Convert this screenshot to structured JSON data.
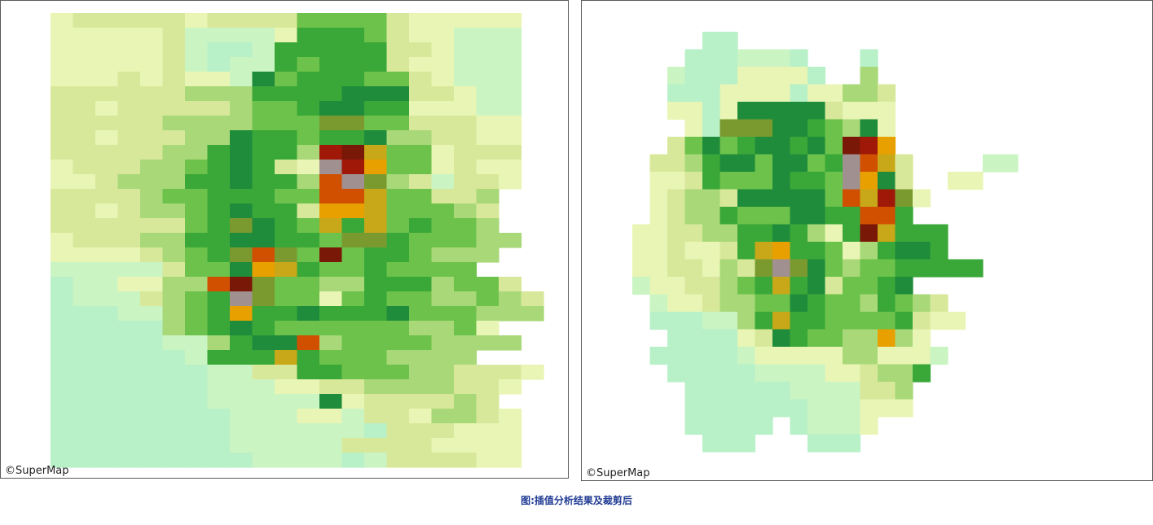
{
  "maps": {
    "left": {
      "credit": "©SuperMap"
    },
    "right": {
      "credit": "©SuperMap"
    }
  },
  "caption": "图:插值分析结果及裁剪后",
  "palette": [
    "#b0f0e8",
    "#b8f0c8",
    "#cbf4c3",
    "#e8f5b4",
    "#d8e89a",
    "#a8d878",
    "#6cc24a",
    "#3aa838",
    "#1e8c3a",
    "#7a9a30",
    "#c8a818",
    "#e8a000",
    "#d05000",
    "#a01808",
    "#7a1808",
    "#a09090"
  ],
  "grids": {
    "left": [
      "344444344446666433333",
      "333334222237776433222",
      "333334211277777443222",
      "333334212276777433222",
      "333434332867776643222",
      "444444555777788844322",
      "443444445667887733322",
      "444445555666996644433",
      "443444558776778554433",
      "444445578775DEA663444",
      "344455678743FDB663433",
      "334555778775CF9542443",
      "444456677766CCA66445",
      "443455678774BBA66654",
      "444444679876A7A67665",
      "344455778877699766655",
      "333345679C96E6776555",
      "222224668BA76676666",
      "1223355CE966557775664",
      "12224567F9663676655654",
      "11122567B7787778666555",
      "11111567876666665563",
      "11111225788C566665555",
      "1111112777A76665555",
      "1111111224477666554443",
      "111111122233445555443",
      "11111112222283444454",
      "111111112223324435543",
      "111111112222221444333",
      "111111112222244443333",
      "111111111222212444433"
    ],
    "right": [
      "000011000000000000000000",
      "000111222100010000000000",
      "002111333310050000000000",
      "001113333133554000000000",
      "003313888884333000000000",
      "000319998876583000000000",
      "004686788786EDB000000000",
      "044578868867FCA400002200",
      "033476668776FB8400330000",
      "034554888886CAD930000000",
      "0345576668877CC70000000",
      "3344557787537EA7770000000",
      "3343347AB7763578870000000",
      "33443549F9865667777700000",
      "23344567A7846678000000000",
      "0233455668766576540000000",
      "01112257A7766667433000000",
      "00111134876655B5300000000",
      "0111112333335533320000000",
      "0011111222233455700000000",
      "0001111112222445000000000",
      "0001111111222333000000000",
      "0001111101222300000000000",
      "0000111000111000000000000"
    ]
  }
}
